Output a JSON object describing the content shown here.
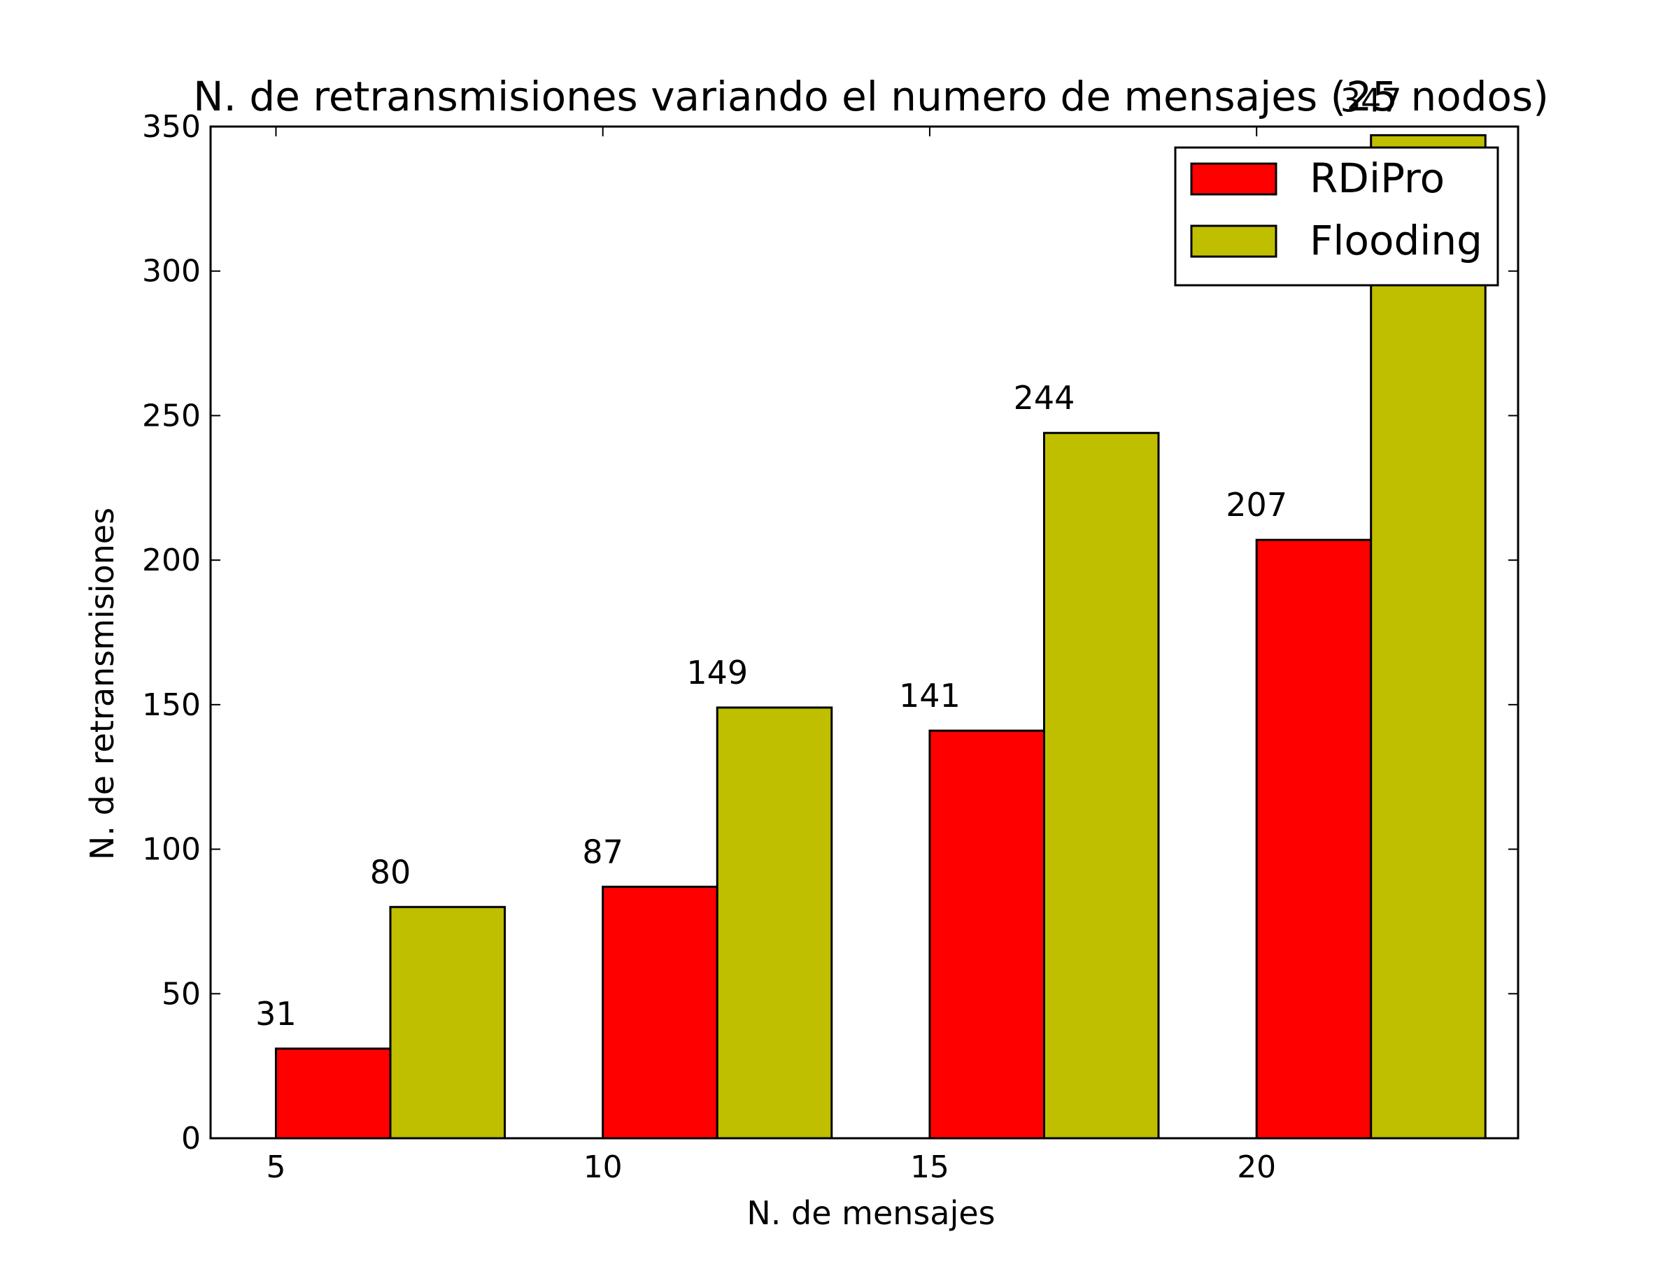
{
  "chart_data": {
    "type": "bar",
    "title": "N. de retransmisiones variando el numero de mensajes (25 nodos)",
    "xlabel": "N. de mensajes",
    "ylabel": "N. de retransmisiones",
    "categories": [
      "5",
      "10",
      "15",
      "20"
    ],
    "series": [
      {
        "name": "RDiPro",
        "values": [
          31,
          87,
          141,
          207
        ],
        "color": "#ff0000"
      },
      {
        "name": "Flooding",
        "values": [
          80,
          149,
          244,
          347
        ],
        "color": "#bfbf00"
      }
    ],
    "ylim": [
      0,
      350
    ],
    "yticks": [
      0,
      50,
      100,
      150,
      200,
      250,
      300,
      350
    ],
    "xlim": [
      4,
      24
    ],
    "bar_width": 1.75,
    "grid": false,
    "legend": "top-right",
    "data_labels": true
  }
}
